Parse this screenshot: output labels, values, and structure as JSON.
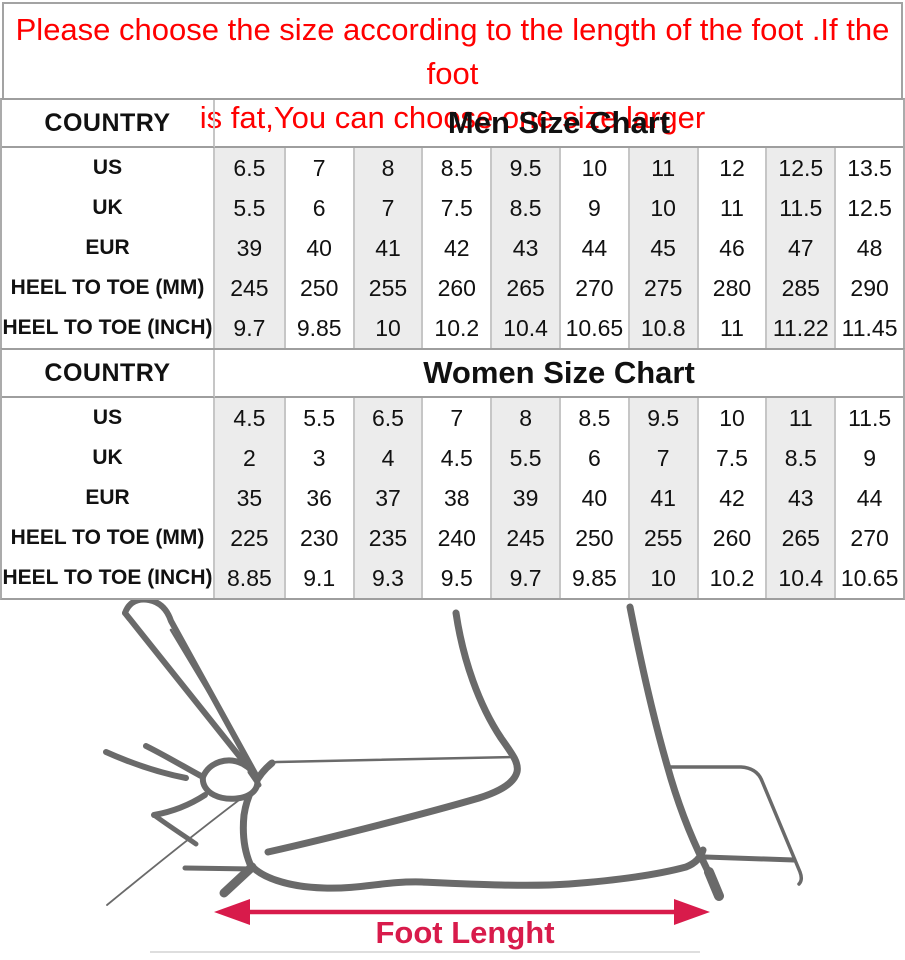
{
  "notice": {
    "lines": [
      "Please choose the size according to the length of the foot .If the foot",
      "is fat,You can choose one size larger"
    ]
  },
  "tables": [
    {
      "corner_label": "COUNTRY",
      "title": "Men Size Chart",
      "rows": [
        {
          "label": "US",
          "values": [
            "6.5",
            "7",
            "8",
            "8.5",
            "9.5",
            "10",
            "11",
            "12",
            "12.5",
            "13.5"
          ]
        },
        {
          "label": "UK",
          "values": [
            "5.5",
            "6",
            "7",
            "7.5",
            "8.5",
            "9",
            "10",
            "11",
            "11.5",
            "12.5"
          ]
        },
        {
          "label": "EUR",
          "values": [
            "39",
            "40",
            "41",
            "42",
            "43",
            "44",
            "45",
            "46",
            "47",
            "48"
          ]
        },
        {
          "label": "HEEL TO TOE (MM)",
          "values": [
            "245",
            "250",
            "255",
            "260",
            "265",
            "270",
            "275",
            "280",
            "285",
            "290"
          ]
        },
        {
          "label": "HEEL TO TOE (INCH)",
          "values": [
            "9.7",
            "9.85",
            "10",
            "10.2",
            "10.4",
            "10.65",
            "10.8",
            "11",
            "11.22",
            "11.45"
          ]
        }
      ]
    },
    {
      "corner_label": "COUNTRY",
      "title": "Women Size Chart",
      "rows": [
        {
          "label": "US",
          "values": [
            "4.5",
            "5.5",
            "6.5",
            "7",
            "8",
            "8.5",
            "9.5",
            "10",
            "11",
            "11.5"
          ]
        },
        {
          "label": "UK",
          "values": [
            "2",
            "3",
            "4",
            "4.5",
            "5.5",
            "6",
            "7",
            "7.5",
            "8.5",
            "9"
          ]
        },
        {
          "label": "EUR",
          "values": [
            "35",
            "36",
            "37",
            "38",
            "39",
            "40",
            "41",
            "42",
            "43",
            "44"
          ]
        },
        {
          "label": "HEEL TO TOE (MM)",
          "values": [
            "225",
            "230",
            "235",
            "240",
            "245",
            "250",
            "255",
            "260",
            "265",
            "270"
          ]
        },
        {
          "label": "HEEL TO TOE (INCH)",
          "values": [
            "8.85",
            "9.1",
            "9.3",
            "9.5",
            "9.7",
            "9.85",
            "10",
            "10.2",
            "10.4",
            "10.65"
          ]
        }
      ]
    }
  ],
  "foot_diagram": {
    "label": "Foot Lenght"
  },
  "colors": {
    "notice_text": "#ff0000",
    "stripe_bg": "#ececec",
    "border_h": "#9e9e9e",
    "border_v": "#c6c6c6",
    "sketch_stroke": "#6a6a6a",
    "arrow_red": "#d81b4b"
  }
}
